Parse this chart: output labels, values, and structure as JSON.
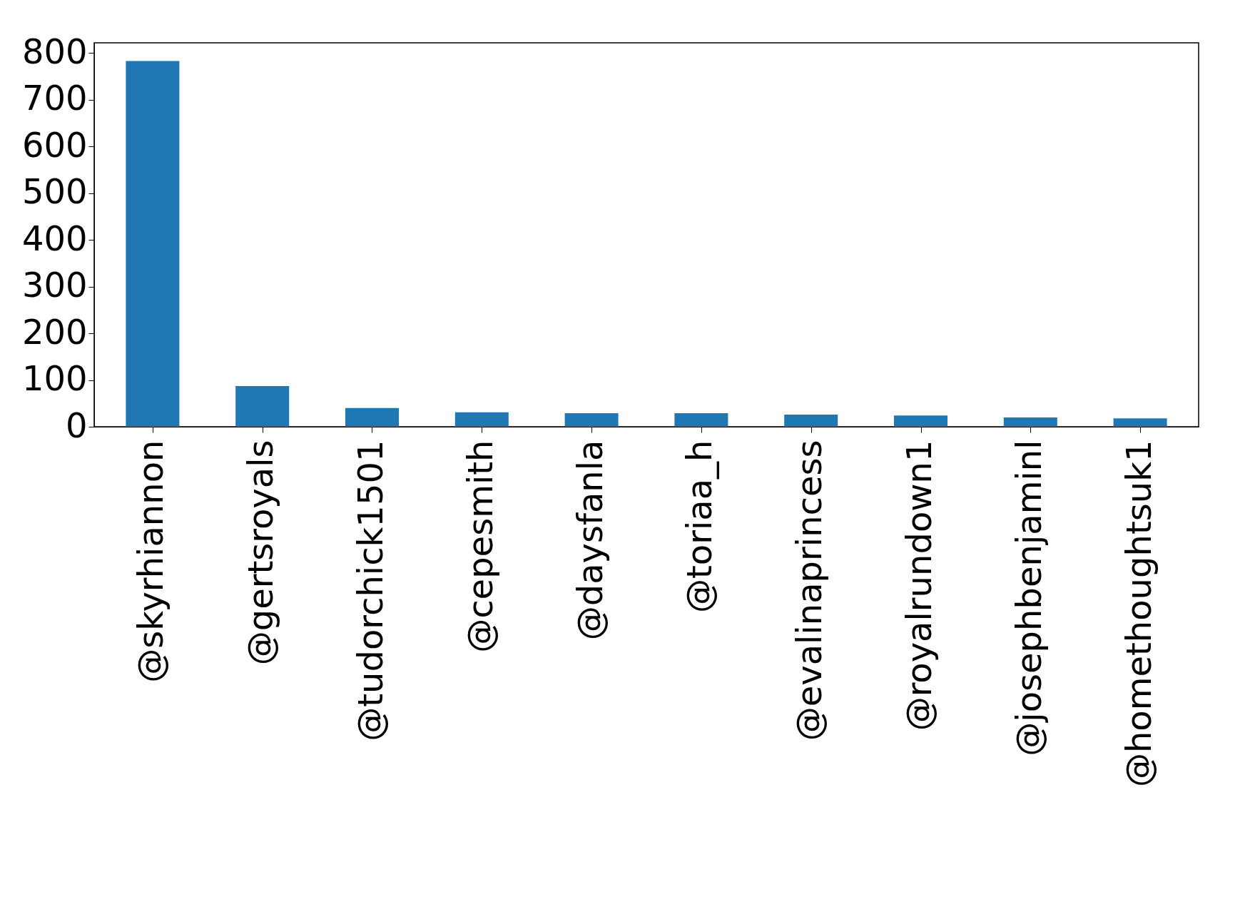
{
  "chart_data": {
    "type": "bar",
    "categories": [
      "@skyrhiannon",
      "@gertsroyals",
      "@tudorchick1501",
      "@cepesmith",
      "@daysfanla",
      "@toriaa_h",
      "@evalinaprincess",
      "@royalrundown1",
      "@josephbenjaminl",
      "@homethoughtsuk1"
    ],
    "values": [
      783,
      87,
      40,
      31,
      29,
      29,
      26,
      24,
      20,
      18
    ],
    "color": "#1f77b4",
    "ylim": [
      0,
      822
    ],
    "yticks": [
      0,
      100,
      200,
      300,
      400,
      500,
      600,
      700,
      800
    ],
    "grid": false
  }
}
